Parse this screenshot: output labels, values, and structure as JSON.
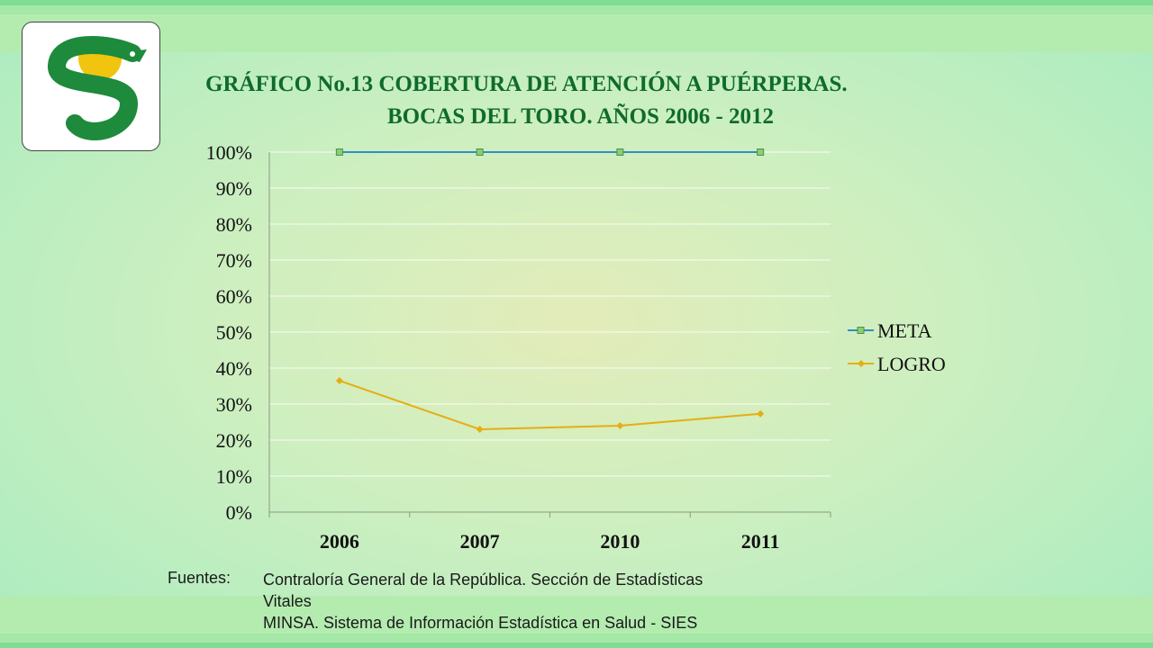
{
  "title": {
    "line1": "GRÁFICO No.13 COBERTURA DE ATENCIÓN A PUÉRPERAS.",
    "line2": "BOCAS DEL TORO. AÑOS 2006 - 2012"
  },
  "chart_data": {
    "type": "line",
    "categories": [
      "2006",
      "2007",
      "2010",
      "2011"
    ],
    "series": [
      {
        "name": "META",
        "values": [
          100,
          100,
          100,
          100
        ],
        "color": "#2f8fc4",
        "marker": "square",
        "marker_color": "#8ccf6c"
      },
      {
        "name": "LOGRO",
        "values": [
          36.5,
          23,
          24,
          27.3
        ],
        "color": "#e5ae12",
        "marker": "diamond",
        "marker_color": "#e5ae12"
      }
    ],
    "yticks": [
      "0%",
      "10%",
      "20%",
      "30%",
      "40%",
      "50%",
      "60%",
      "70%",
      "80%",
      "90%",
      "100%"
    ],
    "ylim": [
      0,
      100
    ],
    "grid": true,
    "legend": "right"
  },
  "sources": {
    "label": "Fuentes:",
    "line1": "Contraloría General de la República. Sección de Estadísticas",
    "line2": "Vitales",
    "line3": "MINSA. Sistema de Información Estadística en Salud - SIES"
  },
  "colors": {
    "title": "#0f6b2b",
    "logo_green": "#1e8a3c",
    "logo_yellow": "#f1c40f"
  }
}
